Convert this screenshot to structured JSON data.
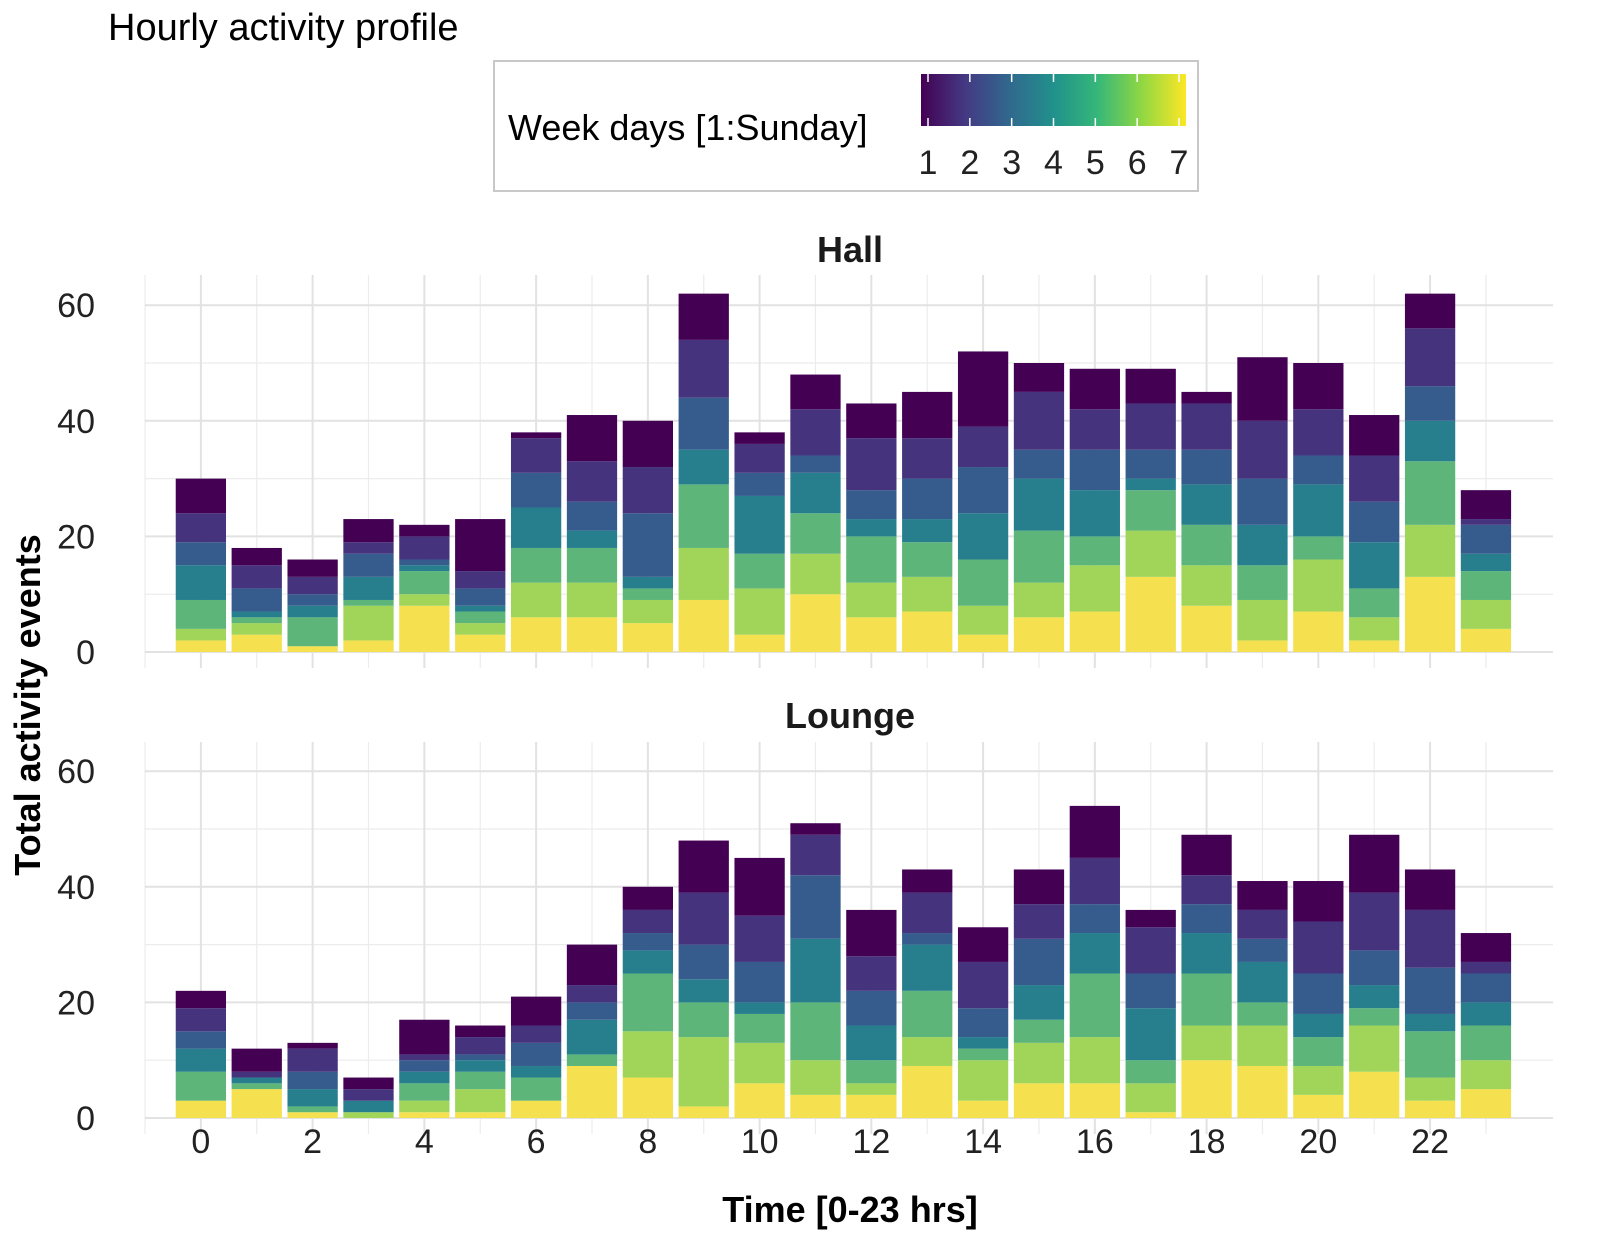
{
  "chart_data": {
    "type": "bar",
    "stacked": true,
    "title": "Hourly activity profile",
    "xlabel": "Time [0-23 hrs]",
    "ylabel": "Total activity events",
    "ylim": [
      0,
      65
    ],
    "yticks": [
      0,
      20,
      40,
      60
    ],
    "xticks": [
      0,
      2,
      4,
      6,
      8,
      10,
      12,
      14,
      16,
      18,
      20,
      22
    ],
    "grid": true,
    "categories": [
      0,
      1,
      2,
      3,
      4,
      5,
      6,
      7,
      8,
      9,
      10,
      11,
      12,
      13,
      14,
      15,
      16,
      17,
      18,
      19,
      20,
      21,
      22,
      23
    ],
    "legend": {
      "title": "Week days [1:Sunday]",
      "placement": "top-center",
      "type": "colorbar",
      "labels": [
        "1",
        "2",
        "3",
        "4",
        "5",
        "6",
        "7"
      ],
      "colors": [
        "#440154",
        "#443983",
        "#31688e",
        "#21918c",
        "#35b779",
        "#90d743",
        "#fde725"
      ]
    },
    "series_order_note": "day 7 stacked at bottom, day 1 at top",
    "facets": [
      {
        "name": "Hall",
        "series": [
          {
            "name": "1",
            "color": "#440154",
            "values": [
              6,
              3,
              3,
              4,
              2,
              9,
              1,
              8,
              8,
              8,
              2,
              6,
              6,
              8,
              13,
              5,
              7,
              6,
              2,
              11,
              8,
              7,
              6,
              5
            ]
          },
          {
            "name": "2",
            "color": "#46337e",
            "values": [
              5,
              4,
              3,
              2,
              4,
              3,
              6,
              7,
              8,
              10,
              5,
              8,
              9,
              7,
              7,
              10,
              7,
              8,
              8,
              10,
              8,
              8,
              10,
              1
            ]
          },
          {
            "name": "3",
            "color": "#365c8d",
            "values": [
              4,
              4,
              2,
              4,
              1,
              3,
              6,
              5,
              11,
              9,
              4,
              3,
              5,
              7,
              8,
              5,
              7,
              5,
              6,
              8,
              5,
              7,
              6,
              5
            ]
          },
          {
            "name": "4",
            "color": "#277f8e",
            "values": [
              6,
              1,
              2,
              4,
              1,
              1,
              7,
              3,
              2,
              6,
              10,
              7,
              3,
              4,
              8,
              9,
              8,
              2,
              7,
              7,
              9,
              8,
              7,
              3
            ]
          },
          {
            "name": "5",
            "color": "#5db57a",
            "values": [
              5,
              1,
              5,
              1,
              4,
              2,
              6,
              6,
              2,
              11,
              6,
              7,
              8,
              6,
              8,
              9,
              5,
              7,
              7,
              6,
              4,
              5,
              11,
              5
            ]
          },
          {
            "name": "6",
            "color": "#a0d55a",
            "values": [
              2,
              2,
              0,
              6,
              2,
              2,
              6,
              6,
              4,
              9,
              8,
              7,
              6,
              6,
              5,
              6,
              8,
              8,
              7,
              7,
              9,
              4,
              9,
              5
            ]
          },
          {
            "name": "7",
            "color": "#f5e04f",
            "values": [
              2,
              3,
              1,
              2,
              8,
              3,
              6,
              6,
              5,
              9,
              3,
              10,
              6,
              7,
              3,
              6,
              7,
              13,
              8,
              2,
              7,
              2,
              13,
              4
            ]
          }
        ],
        "totals": [
          30,
          18,
          16,
          23,
          22,
          23,
          38,
          41,
          40,
          62,
          38,
          48,
          43,
          45,
          52,
          50,
          49,
          49,
          45,
          51,
          50,
          41,
          62,
          28
        ]
      },
      {
        "name": "Lounge",
        "series": [
          {
            "name": "1",
            "color": "#440154",
            "values": [
              3,
              4,
              1,
              2,
              6,
              2,
              5,
              7,
              4,
              9,
              10,
              2,
              8,
              4,
              6,
              6,
              9,
              3,
              7,
              5,
              7,
              10,
              7,
              5
            ]
          },
          {
            "name": "2",
            "color": "#46337e",
            "values": [
              4,
              1,
              4,
              2,
              1,
              3,
              3,
              3,
              4,
              9,
              8,
              7,
              6,
              7,
              8,
              6,
              8,
              8,
              5,
              5,
              9,
              10,
              10,
              2
            ]
          },
          {
            "name": "3",
            "color": "#365c8d",
            "values": [
              3,
              0,
              3,
              0,
              2,
              1,
              4,
              3,
              3,
              6,
              7,
              11,
              6,
              2,
              5,
              8,
              5,
              6,
              5,
              4,
              7,
              6,
              8,
              5
            ]
          },
          {
            "name": "4",
            "color": "#277f8e",
            "values": [
              4,
              1,
              3,
              2,
              2,
              2,
              2,
              6,
              4,
              4,
              2,
              11,
              6,
              8,
              2,
              6,
              7,
              9,
              7,
              7,
              4,
              4,
              3,
              4
            ]
          },
          {
            "name": "5",
            "color": "#5db57a",
            "values": [
              5,
              1,
              1,
              0,
              3,
              3,
              4,
              2,
              10,
              6,
              5,
              10,
              4,
              8,
              2,
              4,
              11,
              4,
              9,
              4,
              5,
              3,
              8,
              6
            ]
          },
          {
            "name": "6",
            "color": "#a0d55a",
            "values": [
              0,
              0,
              0,
              1,
              2,
              4,
              0,
              0,
              8,
              12,
              7,
              6,
              2,
              5,
              7,
              7,
              8,
              5,
              6,
              7,
              5,
              8,
              4,
              5
            ]
          },
          {
            "name": "7",
            "color": "#f5e04f",
            "values": [
              3,
              5,
              1,
              0,
              1,
              1,
              3,
              9,
              7,
              2,
              6,
              4,
              4,
              9,
              3,
              6,
              6,
              1,
              10,
              9,
              4,
              8,
              3,
              5
            ]
          }
        ],
        "totals": [
          22,
          12,
          13,
          7,
          17,
          16,
          21,
          30,
          40,
          48,
          45,
          51,
          36,
          43,
          33,
          43,
          54,
          36,
          49,
          41,
          41,
          49,
          43,
          32
        ]
      }
    ]
  }
}
